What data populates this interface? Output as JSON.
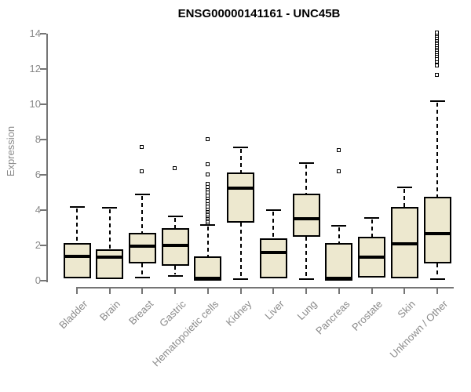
{
  "title": "ENSG00000141161 - UNC45B",
  "colors": {
    "box_fill": "#EDE8CF",
    "box_border": "#000000",
    "median": "#000000",
    "axis": "#757575",
    "axis_text": "#8A8A8A",
    "title_text": "#000000",
    "background": "#FFFFFF"
  },
  "chart_data": {
    "type": "boxplot",
    "title": "ENSG00000141161 - UNC45B",
    "xlabel": "",
    "ylabel": "Expression",
    "ylim": [
      0,
      14
    ],
    "yticks": [
      0,
      2,
      4,
      6,
      8,
      10,
      12,
      14
    ],
    "grid": false,
    "categories": [
      "Bladder",
      "Brain",
      "Breast",
      "Gastric",
      "Hematopoietic cells",
      "Kidney",
      "Liver",
      "Lung",
      "Pancreas",
      "Prostate",
      "Skin",
      "Unknown / Other"
    ],
    "boxes": [
      {
        "category": "Bladder",
        "whisker_low": 0.15,
        "q1": 0.15,
        "median": 1.4,
        "q3": 2.15,
        "whisker_high": 4.2,
        "outliers": []
      },
      {
        "category": "Brain",
        "whisker_low": 0.1,
        "q1": 0.1,
        "median": 1.35,
        "q3": 1.8,
        "whisker_high": 4.15,
        "outliers": []
      },
      {
        "category": "Breast",
        "whisker_low": 0.2,
        "q1": 1.0,
        "median": 1.95,
        "q3": 2.7,
        "whisker_high": 4.9,
        "outliers": [
          6.2,
          7.55
        ]
      },
      {
        "category": "Gastric",
        "whisker_low": 0.25,
        "q1": 0.85,
        "median": 2.0,
        "q3": 3.0,
        "whisker_high": 3.65,
        "outliers": [
          6.35
        ]
      },
      {
        "category": "Hematopoietic cells",
        "whisker_low": 0.0,
        "q1": 0.0,
        "median": 0.12,
        "q3": 1.38,
        "whisker_high": 3.15,
        "outliers": [
          3.25,
          3.35,
          3.45,
          3.55,
          3.65,
          3.75,
          3.85,
          3.95,
          4.05,
          4.2,
          4.35,
          4.5,
          4.65,
          4.8,
          5.0,
          5.15,
          5.3,
          5.45,
          6.0,
          6.6,
          8.0
        ]
      },
      {
        "category": "Kidney",
        "whisker_low": 0.1,
        "q1": 3.3,
        "median": 5.25,
        "q3": 6.15,
        "whisker_high": 7.55,
        "outliers": []
      },
      {
        "category": "Liver",
        "whisker_low": 0.15,
        "q1": 0.15,
        "median": 1.6,
        "q3": 2.4,
        "whisker_high": 4.0,
        "outliers": []
      },
      {
        "category": "Lung",
        "whisker_low": 0.1,
        "q1": 2.5,
        "median": 3.5,
        "q3": 4.95,
        "whisker_high": 6.65,
        "outliers": []
      },
      {
        "category": "Pancreas",
        "whisker_low": 0.0,
        "q1": 0.0,
        "median": 0.15,
        "q3": 2.15,
        "whisker_high": 3.1,
        "outliers": [
          6.2,
          7.4
        ]
      },
      {
        "category": "Prostate",
        "whisker_low": 0.2,
        "q1": 0.2,
        "median": 1.35,
        "q3": 2.5,
        "whisker_high": 3.55,
        "outliers": []
      },
      {
        "category": "Skin",
        "whisker_low": 0.15,
        "q1": 0.15,
        "median": 2.1,
        "q3": 4.2,
        "whisker_high": 5.3,
        "outliers": []
      },
      {
        "category": "Unknown / Other",
        "whisker_low": 0.1,
        "q1": 1.0,
        "median": 2.65,
        "q3": 4.75,
        "whisker_high": 10.2,
        "outliers": [
          11.65,
          12.2,
          12.4,
          12.55,
          12.7,
          12.85,
          12.95,
          13.05,
          13.15,
          13.25,
          13.35,
          13.45,
          13.55,
          13.65,
          13.75,
          13.85,
          13.95,
          14.05
        ]
      }
    ]
  }
}
